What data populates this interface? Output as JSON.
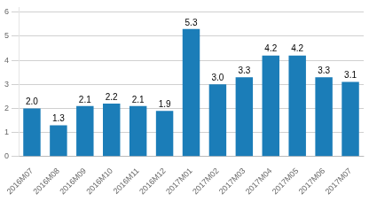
{
  "chart_data": {
    "type": "bar",
    "categories": [
      "2016M07",
      "2016M08",
      "2016M09",
      "2016M10",
      "2016M11",
      "2016M12",
      "2017M01",
      "2017M02",
      "2017M03",
      "2017M04",
      "2017M05",
      "2017M06",
      "2017M07"
    ],
    "values": [
      2.0,
      1.3,
      2.1,
      2.2,
      2.1,
      1.9,
      5.3,
      3.0,
      3.3,
      4.2,
      4.2,
      3.3,
      3.1
    ],
    "value_labels": [
      "2.0",
      "1.3",
      "2.1",
      "2.2",
      "2.1",
      "1.9",
      "5.3",
      "3.0",
      "3.3",
      "4.2",
      "4.2",
      "3.3",
      "3.1"
    ],
    "color": "#1b7db8",
    "ylim": [
      0,
      6.2
    ],
    "yticks": [
      0,
      1,
      2,
      3,
      4,
      5,
      6
    ],
    "grid": true,
    "data_labels": true
  }
}
